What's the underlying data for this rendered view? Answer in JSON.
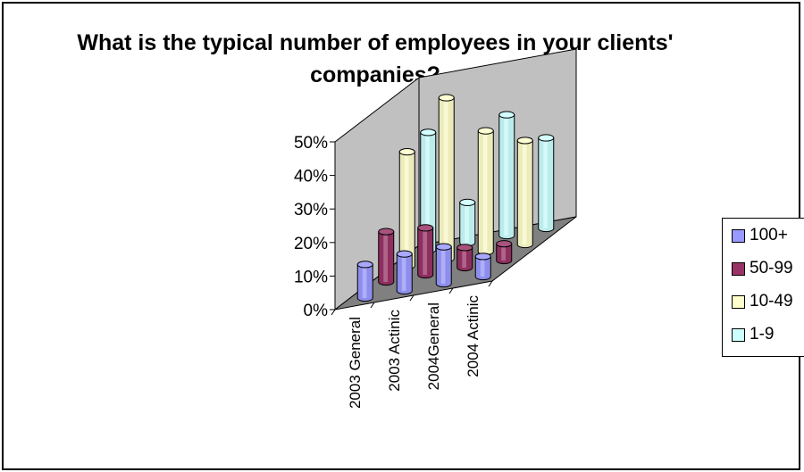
{
  "chart_data": {
    "type": "bar",
    "title": "What is the typical number of employees in your clients' companies?",
    "categories": [
      "2003 General",
      "2003 Actinic",
      "2004General",
      "2004 Actinic"
    ],
    "series": [
      {
        "name": "100+",
        "color": "#9999ff",
        "values": [
          10,
          11,
          11,
          6
        ]
      },
      {
        "name": "50-99",
        "color": "#993366",
        "values": [
          15,
          14,
          6,
          5
        ]
      },
      {
        "name": "10-49",
        "color": "#ffffcc",
        "values": [
          34,
          48,
          36,
          31
        ]
      },
      {
        "name": "1-9",
        "color": "#ccffff",
        "values": [
          35,
          12,
          36,
          27
        ]
      }
    ],
    "y_ticks": [
      "0%",
      "10%",
      "20%",
      "30%",
      "40%",
      "50%"
    ],
    "ylim": [
      0,
      50
    ],
    "grid": false,
    "legend_position": "right"
  }
}
